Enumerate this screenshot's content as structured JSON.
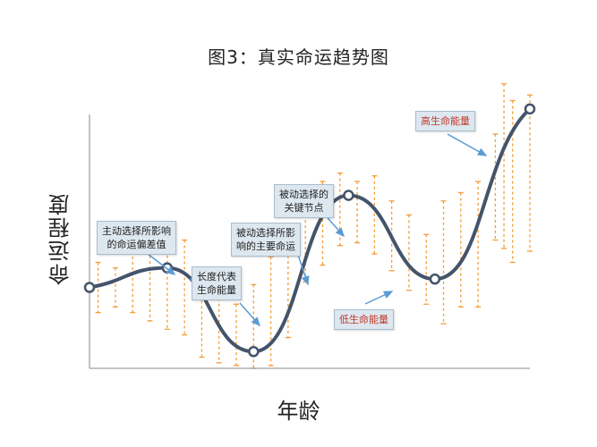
{
  "chart_data": {
    "type": "line",
    "title": "图3：真实命运趋势图",
    "xlabel": "年龄",
    "ylabel": "命运程度",
    "grid": false,
    "series": [
      {
        "line": [
          [
            0,
            29
          ],
          [
            9,
            36
          ],
          [
            19,
            6
          ],
          [
            30,
            62
          ],
          [
            40,
            32
          ],
          [
            51,
            93
          ]
        ],
        "errorbars": [
          [
            1,
            20,
            38
          ],
          [
            3,
            22,
            36
          ],
          [
            5,
            20,
            42
          ],
          [
            7,
            17,
            50
          ],
          [
            9,
            14,
            52
          ],
          [
            11,
            12,
            46
          ],
          [
            13,
            4,
            30
          ],
          [
            15,
            2,
            27
          ],
          [
            17,
            1,
            23
          ],
          [
            19,
            0,
            30
          ],
          [
            21,
            1,
            40
          ],
          [
            23,
            11,
            50
          ],
          [
            25,
            31,
            57
          ],
          [
            27,
            37,
            67
          ],
          [
            29,
            44,
            70
          ],
          [
            31,
            45,
            67
          ],
          [
            33,
            41,
            69
          ],
          [
            35,
            35,
            60
          ],
          [
            37,
            28,
            55
          ],
          [
            39,
            23,
            48
          ],
          [
            41,
            16,
            60
          ],
          [
            43,
            22,
            63
          ],
          [
            45,
            22,
            67
          ],
          [
            47,
            46,
            84
          ],
          [
            48,
            43,
            102
          ],
          [
            49,
            38,
            96
          ],
          [
            51,
            42,
            98
          ]
        ]
      }
    ],
    "annotations": [
      {
        "id": "a1",
        "text": "主动选择所影响\n的命运偏差值",
        "color": "#222222"
      },
      {
        "id": "a2",
        "text": "长度代表\n生命能量",
        "color": "#222222"
      },
      {
        "id": "a3",
        "text": "被动选择所影\n响的主要命运",
        "color": "#222222"
      },
      {
        "id": "a4",
        "text": "被动选择的\n关键节点",
        "color": "#222222"
      },
      {
        "id": "a5",
        "text": "低生命能量",
        "color": "#c0392b"
      },
      {
        "id": "a6",
        "text": "高生命能量",
        "color": "#c0392b"
      }
    ],
    "colors": {
      "line": "#44546a",
      "marker_fill": "#ffffff",
      "errorbar": "#f39c38",
      "arrow": "#5b9bd5",
      "axis": "#888888"
    }
  }
}
